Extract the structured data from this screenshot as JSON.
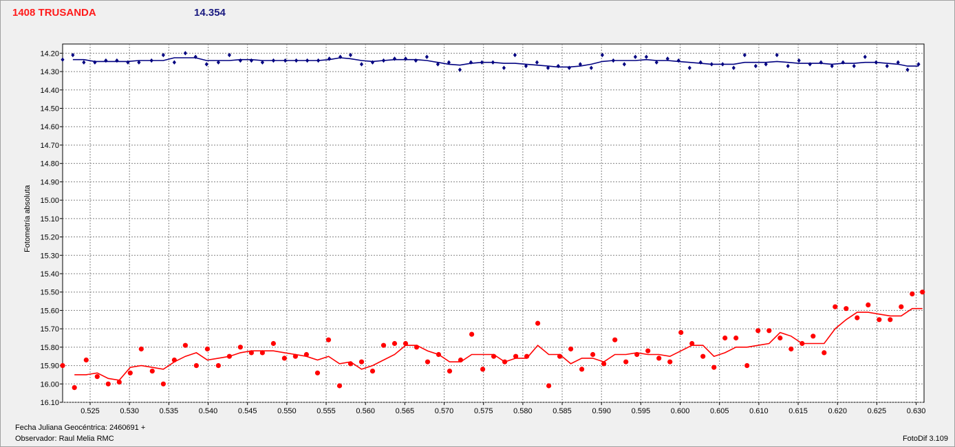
{
  "header": {
    "object_label": "1408 TRUSANDA",
    "magnitude_value": "14.354"
  },
  "footer": {
    "julian_date": "Fecha Juliana Geocéntrica: 2460691 +",
    "observer": "Observador: Raul Melia RMC",
    "software": "FotoDif 3.109"
  },
  "colors": {
    "red_series": "#ff0000",
    "blue_series": "#000080",
    "plot_background": "#ffffff",
    "grid": "#808080"
  },
  "chart_data": {
    "type": "scatter",
    "ylabel": "Fotometría absoluta",
    "xlabel": "",
    "xlim": [
      0.5215,
      0.631
    ],
    "ylim": [
      16.1,
      14.15
    ],
    "y_inverted": true,
    "grid": true,
    "x_ticks": [
      "0.525",
      "0.530",
      "0.535",
      "0.540",
      "0.545",
      "0.550",
      "0.555",
      "0.560",
      "0.565",
      "0.570",
      "0.575",
      "0.580",
      "0.585",
      "0.590",
      "0.595",
      "0.600",
      "0.605",
      "0.610",
      "0.615",
      "0.620",
      "0.625",
      "0.630"
    ],
    "y_ticks": [
      "14.20",
      "14.30",
      "14.40",
      "14.50",
      "14.60",
      "14.70",
      "14.80",
      "14.90",
      "15.00",
      "15.10",
      "15.20",
      "15.30",
      "15.40",
      "15.50",
      "15.60",
      "15.70",
      "15.80",
      "15.90",
      "16.00",
      "16.10"
    ],
    "series": [
      {
        "marker": "diamond",
        "x": [
          0.5215,
          0.5228,
          0.5242,
          0.5256,
          0.527,
          0.5284,
          0.5298,
          0.5312,
          0.5328,
          0.5343,
          0.5357,
          0.5371,
          0.5384,
          0.5398,
          0.5413,
          0.5427,
          0.5441,
          0.5455,
          0.5469,
          0.5483,
          0.5498,
          0.5512,
          0.5526,
          0.554,
          0.5554,
          0.5568,
          0.5581,
          0.5595,
          0.5609,
          0.5623,
          0.5637,
          0.5651,
          0.5664,
          0.5678,
          0.5692,
          0.5706,
          0.572,
          0.5734,
          0.5748,
          0.5762,
          0.5776,
          0.579,
          0.5804,
          0.5818,
          0.5832,
          0.5845,
          0.5859,
          0.5873,
          0.5887,
          0.5901,
          0.5915,
          0.5929,
          0.5943,
          0.5957,
          0.597,
          0.5984,
          0.5998,
          0.6012,
          0.6026,
          0.604,
          0.6054,
          0.6068,
          0.6082,
          0.6096,
          0.6109,
          0.6123,
          0.6137,
          0.6151,
          0.6165,
          0.6179,
          0.6193,
          0.6207,
          0.6221,
          0.6235,
          0.6249,
          0.6263,
          0.6277,
          0.6289,
          0.6303
        ],
        "y": [
          14.235,
          14.21,
          14.25,
          14.25,
          14.24,
          14.24,
          14.25,
          14.25,
          14.24,
          14.21,
          14.25,
          14.2,
          14.22,
          14.26,
          14.25,
          14.21,
          14.24,
          14.24,
          14.25,
          14.24,
          14.24,
          14.24,
          14.24,
          14.24,
          14.23,
          14.22,
          14.21,
          14.26,
          14.25,
          14.24,
          14.23,
          14.23,
          14.24,
          14.22,
          14.26,
          14.25,
          14.29,
          14.25,
          14.25,
          14.25,
          14.28,
          14.21,
          14.27,
          14.25,
          14.28,
          14.27,
          14.28,
          14.26,
          14.28,
          14.21,
          14.24,
          14.26,
          14.22,
          14.22,
          14.25,
          14.23,
          14.24,
          14.28,
          14.25,
          14.26,
          14.26,
          14.28,
          14.21,
          14.27,
          14.26,
          14.21,
          14.27,
          14.24,
          14.26,
          14.25,
          14.27,
          14.25,
          14.27,
          14.22,
          14.25,
          14.27,
          14.25,
          14.29,
          14.26
        ]
      },
      {
        "marker": "circle",
        "x": [
          0.5215,
          0.523,
          0.5245,
          0.5259,
          0.5273,
          0.5287,
          0.5301,
          0.5315,
          0.5329,
          0.5343,
          0.5357,
          0.5371,
          0.5385,
          0.5399,
          0.5413,
          0.5427,
          0.5441,
          0.5455,
          0.5469,
          0.5483,
          0.5497,
          0.5511,
          0.5525,
          0.5539,
          0.5553,
          0.5567,
          0.5581,
          0.5595,
          0.5609,
          0.5623,
          0.5637,
          0.5651,
          0.5665,
          0.5679,
          0.5693,
          0.5707,
          0.5721,
          0.5735,
          0.5749,
          0.5763,
          0.5777,
          0.5791,
          0.5805,
          0.5819,
          0.5833,
          0.5847,
          0.5861,
          0.5875,
          0.5889,
          0.5903,
          0.5917,
          0.5931,
          0.5945,
          0.5959,
          0.5973,
          0.5987,
          0.6001,
          0.6015,
          0.6029,
          0.6043,
          0.6057,
          0.6071,
          0.6085,
          0.6099,
          0.6113,
          0.6127,
          0.6141,
          0.6155,
          0.6169,
          0.6183,
          0.6197,
          0.6211,
          0.6225,
          0.6239,
          0.6253,
          0.6267,
          0.6281,
          0.6295,
          0.6308
        ],
        "y": [
          15.9,
          16.02,
          15.87,
          15.96,
          16.0,
          15.99,
          15.94,
          15.81,
          15.93,
          16.0,
          15.87,
          15.79,
          15.9,
          15.81,
          15.9,
          15.85,
          15.8,
          15.83,
          15.83,
          15.78,
          15.86,
          15.85,
          15.84,
          15.94,
          15.76,
          16.01,
          15.89,
          15.88,
          15.93,
          15.79,
          15.78,
          15.78,
          15.8,
          15.88,
          15.84,
          15.93,
          15.87,
          15.73,
          15.92,
          15.85,
          15.88,
          15.85,
          15.85,
          15.67,
          16.01,
          15.85,
          15.81,
          15.92,
          15.84,
          15.89,
          15.76,
          15.88,
          15.84,
          15.82,
          15.86,
          15.88,
          15.72,
          15.78,
          15.85,
          15.91,
          15.75,
          15.75,
          15.9,
          15.71,
          15.71,
          15.75,
          15.81,
          15.78,
          15.74,
          15.83,
          15.58,
          15.59,
          15.64,
          15.57,
          15.65,
          15.65,
          15.58,
          15.51,
          15.5
        ],
        "trend_y": [
          15.92,
          15.95,
          15.95,
          15.94,
          15.97,
          15.98,
          15.91,
          15.9,
          15.91,
          15.92,
          15.88,
          15.85,
          15.83,
          15.87,
          15.86,
          15.85,
          15.83,
          15.82,
          15.82,
          15.82,
          15.83,
          15.84,
          15.85,
          15.87,
          15.85,
          15.89,
          15.88,
          15.92,
          15.9,
          15.87,
          15.84,
          15.79,
          15.79,
          15.82,
          15.84,
          15.88,
          15.88,
          15.84,
          15.84,
          15.84,
          15.88,
          15.86,
          15.86,
          15.79,
          15.84,
          15.84,
          15.89,
          15.86,
          15.86,
          15.88,
          15.84,
          15.84,
          15.83,
          15.84,
          15.84,
          15.85,
          15.82,
          15.79,
          15.79,
          15.85,
          15.83,
          15.8,
          15.8,
          15.79,
          15.78,
          15.72,
          15.74,
          15.78,
          15.78,
          15.78,
          15.7,
          15.65,
          15.61,
          15.61,
          15.62,
          15.63,
          15.63,
          15.59,
          15.59
        ]
      }
    ],
    "blue_trend_y": [
      14.235,
      14.235,
      14.235,
      14.245,
      14.245,
      14.245,
      14.245,
      14.24,
      14.24,
      14.24,
      14.225,
      14.225,
      14.225,
      14.24,
      14.24,
      14.24,
      14.235,
      14.235,
      14.24,
      14.24,
      14.24,
      14.24,
      14.24,
      14.24,
      14.235,
      14.225,
      14.23,
      14.24,
      14.245,
      14.24,
      14.235,
      14.235,
      14.235,
      14.24,
      14.25,
      14.26,
      14.265,
      14.255,
      14.25,
      14.25,
      14.255,
      14.255,
      14.26,
      14.265,
      14.27,
      14.275,
      14.275,
      14.27,
      14.26,
      14.245,
      14.24,
      14.24,
      14.24,
      14.235,
      14.24,
      14.24,
      14.245,
      14.25,
      14.255,
      14.26,
      14.26,
      14.26,
      14.25,
      14.25,
      14.25,
      14.245,
      14.25,
      14.255,
      14.255,
      14.255,
      14.26,
      14.255,
      14.255,
      14.25,
      14.25,
      14.255,
      14.26,
      14.27,
      14.27
    ]
  }
}
